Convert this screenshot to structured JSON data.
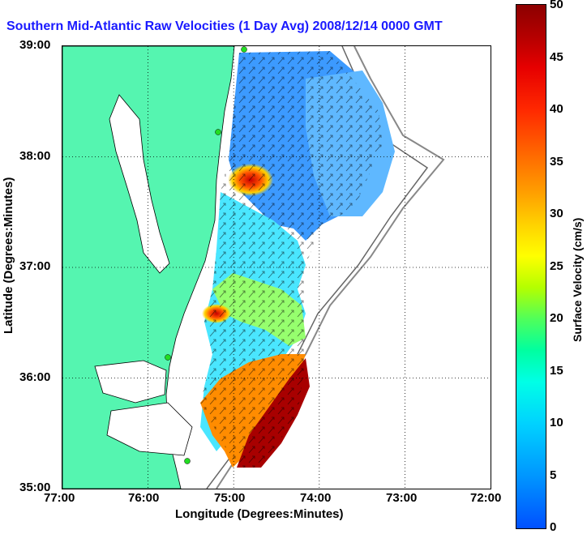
{
  "title": "Southern Mid-Atlantic Raw Velocities (1 Day Avg) 2008/12/14 0000 GMT",
  "x_axis": {
    "label": "Longitude (Degrees:Minutes)",
    "ticks": [
      "77:00",
      "76:00",
      "75:00",
      "74:00",
      "73:00",
      "72:00"
    ]
  },
  "y_axis": {
    "label": "Latitude (Degrees:Minutes)",
    "ticks": [
      "39:00",
      "38:00",
      "37:00",
      "36:00",
      "35:00"
    ]
  },
  "colorbar": {
    "label": "Surface Velocity (cm/s)",
    "ticks": [
      "50",
      "45",
      "40",
      "35",
      "30",
      "25",
      "20",
      "15",
      "10",
      "5",
      "0"
    ]
  },
  "colors": {
    "land": "#55f5b0",
    "slow": "#2f80ff",
    "medium": "#3cf0ff",
    "fast": "#ff3c00",
    "max": "#8c0000",
    "stations": "#22dd22"
  },
  "chart_data": {
    "type": "heatmap",
    "title": "Southern Mid-Atlantic Raw Velocities (1 Day Avg) 2008/12/14 0000 GMT",
    "xlabel": "Longitude (Degrees:Minutes)",
    "ylabel": "Latitude (Degrees:Minutes)",
    "xlim": [
      -77,
      -72
    ],
    "ylim": [
      35,
      39
    ],
    "clim": [
      0,
      50
    ],
    "colorbar_label": "Surface Velocity (cm/s)",
    "grid": true
  }
}
